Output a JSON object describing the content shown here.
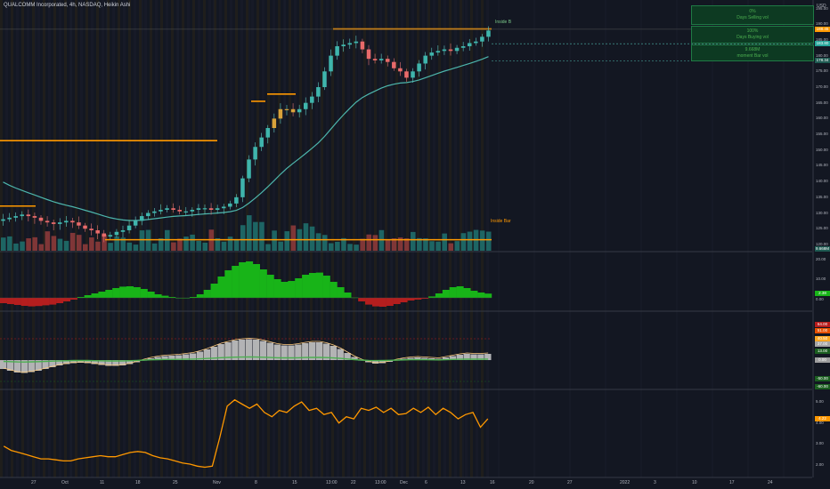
{
  "header": {
    "title": "QUALCOMM Incorporated, 4h, NASDAQ, Heikin Ashi",
    "currency": "USD"
  },
  "info_boxes": [
    {
      "value": "0%",
      "label": "Days Selling vol"
    },
    {
      "value": "100%",
      "label": "Days Buying vol"
    },
    {
      "value": "9.668M",
      "label": "moment Bar vol"
    }
  ],
  "annotations": {
    "inside_bar": "Inside Bar",
    "marker_top": "Inside B"
  },
  "colors": {
    "background": "#131722",
    "up": "#26a69a",
    "down": "#ef5350",
    "level": "#ff9800",
    "ema": "#4db6ac",
    "hist_pos": "#18b418",
    "hist_neg": "#b41e1e",
    "osc": "#cfcfcf",
    "line": "#ff9800"
  },
  "chart_data": [
    {
      "type": "candlestick",
      "title": "QUALCOMM Incorporated, 4h, NASDAQ, Heikin Ashi",
      "yaxis_labels": [
        "195.00",
        "190.00",
        "185.00",
        "180.00",
        "175.00",
        "170.00",
        "165.00",
        "160.00",
        "155.00",
        "150.00",
        "145.00",
        "140.00",
        "135.00",
        "130.00",
        "125.00",
        "120.00"
      ],
      "ylim": [
        118,
        196
      ],
      "price_badges": [
        "188.45",
        "183.80",
        "178.34"
      ],
      "volume_badge": "9.668M",
      "x_ticks": [
        "27",
        "Oct",
        "11",
        "18",
        "25",
        "Nov",
        "8",
        "15",
        "13:00",
        "22",
        "13:00",
        "Dec",
        "6",
        "13",
        "16",
        "20",
        "27",
        "2022",
        "3",
        "10",
        "17",
        "24"
      ],
      "close_approx": [
        128,
        128.5,
        129,
        129.5,
        129,
        128.5,
        127.5,
        127,
        126.5,
        127,
        127.5,
        127,
        126,
        125,
        124.5,
        123.5,
        122.5,
        123,
        124,
        124.5,
        126,
        127.5,
        129,
        130,
        130.5,
        131,
        131.5,
        131,
        130.5,
        130.5,
        131,
        131.5,
        131.5,
        131,
        131.5,
        132,
        133,
        135,
        141,
        147,
        151,
        154,
        157,
        160,
        163,
        163,
        162,
        163,
        165,
        167,
        170,
        175,
        180,
        183,
        183.5,
        184,
        184.5,
        182,
        179,
        178.5,
        179,
        178,
        176,
        175,
        173,
        175,
        177.5,
        180,
        181,
        181.5,
        182,
        181.5,
        182.5,
        183,
        184,
        184.5,
        186,
        188
      ],
      "resistance_levels": [
        {
          "price": 188.5,
          "label": ""
        },
        {
          "price": 167.8,
          "label": ""
        },
        {
          "price": 165.5,
          "label": ""
        },
        {
          "price": 153.0,
          "label": ""
        },
        {
          "price": 132.2,
          "label": ""
        },
        {
          "price": 121.5,
          "label": "Inside Bar"
        }
      ]
    },
    {
      "type": "bar",
      "title": "",
      "yaxis_labels": [
        "20.00",
        "10.00",
        "0.00"
      ],
      "badge": "2.38",
      "values": [
        -3,
        -3.5,
        -4,
        -4.5,
        -4.8,
        -4.6,
        -4.2,
        -3.8,
        -3,
        -2,
        -1,
        0.5,
        1.5,
        2.5,
        3.5,
        4.5,
        5.5,
        6.3,
        6.5,
        6,
        5,
        3.5,
        2,
        1.2,
        0.5,
        0,
        0,
        0.5,
        2,
        4.5,
        8,
        12,
        15.5,
        18,
        20,
        20.5,
        19,
        16,
        13,
        10.5,
        9,
        9.5,
        11,
        13,
        14,
        14.2,
        12.5,
        9,
        6,
        3,
        0.2,
        -2,
        -3.8,
        -4.8,
        -5,
        -4.5,
        -3.5,
        -2.5,
        -1.5,
        -1,
        -0.5,
        0.8,
        2.5,
        4.5,
        6,
        6.5,
        5.5,
        4,
        3,
        2.4
      ]
    },
    {
      "type": "bar",
      "title": "",
      "yaxis_labels": [
        "40.00",
        "60.00",
        "0.00",
        "-40.00"
      ],
      "badges": [
        "64.00",
        "51.00",
        "40.50",
        "37.00",
        "13.00",
        "0.00",
        "-50.00",
        "-60.00"
      ],
      "values": [
        -20,
        -24,
        -28,
        -29,
        -27,
        -24,
        -20,
        -16,
        -12,
        -9,
        -7,
        -6,
        -7,
        -9,
        -11,
        -13,
        -13,
        -12,
        -9,
        -5,
        0,
        4,
        7,
        9,
        10,
        11,
        13,
        15,
        19,
        24,
        30,
        36,
        40,
        44,
        46,
        47,
        46,
        43,
        39,
        35,
        33,
        33,
        35,
        38,
        40,
        40,
        37,
        32,
        25,
        16,
        7,
        0,
        -5,
        -8,
        -7,
        -4,
        0,
        3,
        5,
        6,
        5,
        4,
        3,
        6,
        9,
        12,
        14,
        13,
        13,
        14
      ]
    },
    {
      "type": "line",
      "title": "",
      "yaxis_labels": [
        "5.00",
        "4.00",
        "3.00",
        "2.00"
      ],
      "badge": "4.22",
      "values": [
        2.9,
        2.7,
        2.6,
        2.5,
        2.4,
        2.3,
        2.3,
        2.25,
        2.2,
        2.2,
        2.3,
        2.35,
        2.4,
        2.45,
        2.4,
        2.4,
        2.5,
        2.6,
        2.65,
        2.6,
        2.45,
        2.35,
        2.3,
        2.2,
        2.1,
        2.05,
        1.95,
        1.9,
        1.95,
        3.3,
        4.8,
        5.1,
        4.9,
        4.7,
        4.9,
        4.5,
        4.3,
        4.6,
        4.5,
        4.8,
        5.0,
        4.6,
        4.7,
        4.4,
        4.5,
        4.0,
        4.3,
        4.2,
        4.7,
        4.6,
        4.75,
        4.5,
        4.7,
        4.4,
        4.45,
        4.7,
        4.5,
        4.75,
        4.4,
        4.7,
        4.5,
        4.2,
        4.4,
        4.5,
        3.8,
        4.2
      ]
    }
  ]
}
